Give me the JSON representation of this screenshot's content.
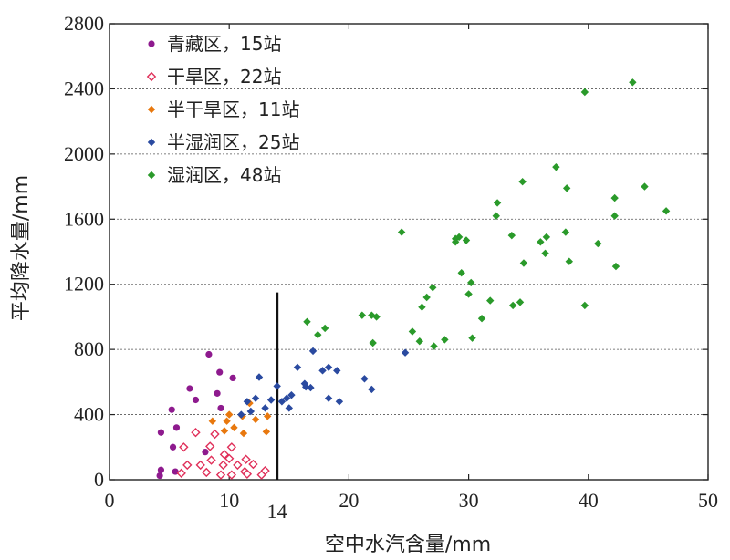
{
  "chart_data": {
    "type": "scatter",
    "xlabel": "空中水汽含量/mm",
    "ylabel": "平均降水量/mm",
    "xlim": [
      0,
      50
    ],
    "ylim": [
      0,
      2800
    ],
    "xticks": [
      0,
      10,
      20,
      30,
      40,
      50
    ],
    "yticks": [
      0,
      400,
      800,
      1200,
      1600,
      2000,
      2400,
      2800
    ],
    "grid": "horizontal-dashed",
    "legend_position": "top-left",
    "annotation": {
      "text": "14",
      "x": 14,
      "line_y": [
        0,
        1150
      ]
    },
    "series": [
      {
        "name": "青藏区，15站",
        "marker": "circle",
        "color": "#8e1a8e",
        "points": [
          [
            8.3,
            770
          ],
          [
            9.2,
            660
          ],
          [
            10.3,
            625
          ],
          [
            6.7,
            560
          ],
          [
            9,
            530
          ],
          [
            7.2,
            490
          ],
          [
            5.2,
            430
          ],
          [
            9.3,
            440
          ],
          [
            5.6,
            320
          ],
          [
            4.3,
            290
          ],
          [
            5.3,
            200
          ],
          [
            8,
            170
          ],
          [
            5.5,
            50
          ],
          [
            4.3,
            60
          ],
          [
            4.2,
            25
          ]
        ]
      },
      {
        "name": "干旱区，22站",
        "marker": "diamond-open",
        "color": "#e0305a",
        "points": [
          [
            7.2,
            290
          ],
          [
            8.8,
            280
          ],
          [
            6.2,
            200
          ],
          [
            8.4,
            205
          ],
          [
            10.2,
            200
          ],
          [
            9.6,
            155
          ],
          [
            8.5,
            120
          ],
          [
            10,
            130
          ],
          [
            11.4,
            125
          ],
          [
            6.5,
            90
          ],
          [
            7.6,
            90
          ],
          [
            9.5,
            90
          ],
          [
            10.7,
            90
          ],
          [
            12,
            95
          ],
          [
            6,
            40
          ],
          [
            8.1,
            45
          ],
          [
            11.3,
            50
          ],
          [
            13,
            55
          ],
          [
            9.3,
            30
          ],
          [
            10.2,
            30
          ],
          [
            11.5,
            35
          ],
          [
            12.7,
            30
          ]
        ]
      },
      {
        "name": "半干旱区，11站",
        "marker": "diamond",
        "color": "#e8780e",
        "points": [
          [
            11.7,
            470
          ],
          [
            10,
            400
          ],
          [
            11.1,
            390
          ],
          [
            13.2,
            390
          ],
          [
            9.8,
            360
          ],
          [
            12.2,
            370
          ],
          [
            8.6,
            360
          ],
          [
            10.4,
            320
          ],
          [
            9.6,
            300
          ],
          [
            13.1,
            295
          ],
          [
            11.2,
            285
          ]
        ]
      },
      {
        "name": "半湿润区，25站",
        "marker": "diamond",
        "color": "#2a4aa0",
        "points": [
          [
            17,
            790
          ],
          [
            24.7,
            780
          ],
          [
            15.7,
            690
          ],
          [
            17.8,
            670
          ],
          [
            18.3,
            690
          ],
          [
            19,
            670
          ],
          [
            12.5,
            630
          ],
          [
            16.3,
            590
          ],
          [
            14,
            575
          ],
          [
            16.4,
            570
          ],
          [
            16.8,
            565
          ],
          [
            21.3,
            620
          ],
          [
            21.9,
            555
          ],
          [
            12.2,
            500
          ],
          [
            11.5,
            480
          ],
          [
            13.5,
            490
          ],
          [
            15.2,
            520
          ],
          [
            14.8,
            500
          ],
          [
            18.3,
            500
          ],
          [
            19.2,
            480
          ],
          [
            14.4,
            480
          ],
          [
            13,
            440
          ],
          [
            15,
            440
          ],
          [
            11,
            400
          ],
          [
            11.8,
            420
          ]
        ]
      },
      {
        "name": "湿润区，48站",
        "marker": "diamond",
        "color": "#2a9a2a",
        "points": [
          [
            43.7,
            2440
          ],
          [
            39.7,
            2380
          ],
          [
            37.3,
            1920
          ],
          [
            34.5,
            1830
          ],
          [
            44.7,
            1800
          ],
          [
            38.2,
            1790
          ],
          [
            42.2,
            1730
          ],
          [
            32.4,
            1700
          ],
          [
            46.5,
            1650
          ],
          [
            32.3,
            1620
          ],
          [
            42.2,
            1620
          ],
          [
            24.4,
            1520
          ],
          [
            38.1,
            1520
          ],
          [
            33.6,
            1500
          ],
          [
            36.5,
            1490
          ],
          [
            29.2,
            1490
          ],
          [
            28.9,
            1480
          ],
          [
            29.8,
            1470
          ],
          [
            28.9,
            1460
          ],
          [
            36,
            1460
          ],
          [
            40.8,
            1450
          ],
          [
            36.4,
            1390
          ],
          [
            38.4,
            1340
          ],
          [
            34.6,
            1330
          ],
          [
            42.3,
            1310
          ],
          [
            29.4,
            1270
          ],
          [
            30.2,
            1210
          ],
          [
            27,
            1180
          ],
          [
            30,
            1140
          ],
          [
            26.5,
            1120
          ],
          [
            31.8,
            1100
          ],
          [
            26.1,
            1060
          ],
          [
            34.3,
            1090
          ],
          [
            33.7,
            1070
          ],
          [
            39.7,
            1070
          ],
          [
            21.1,
            1010
          ],
          [
            21.9,
            1010
          ],
          [
            22.3,
            1000
          ],
          [
            31.1,
            990
          ],
          [
            16.5,
            970
          ],
          [
            18,
            930
          ],
          [
            17.4,
            890
          ],
          [
            25.3,
            910
          ],
          [
            28,
            860
          ],
          [
            25.9,
            850
          ],
          [
            30.3,
            870
          ],
          [
            22,
            840
          ],
          [
            27.1,
            820
          ]
        ]
      }
    ]
  }
}
